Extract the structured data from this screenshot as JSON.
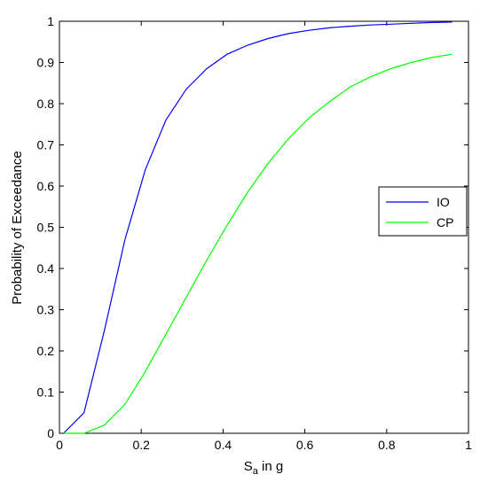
{
  "chart_data": {
    "type": "line",
    "title": "",
    "xlabel": {
      "main": "S",
      "subscript": "a",
      "suffix": " in g"
    },
    "ylabel": "Probability of Exceedance",
    "xlim": [
      0,
      1
    ],
    "ylim": [
      0,
      1
    ],
    "x_ticks": [
      "0",
      "0.2",
      "0.4",
      "0.6",
      "0.8",
      "1"
    ],
    "y_ticks": [
      "0",
      "0.1",
      "0.2",
      "0.3",
      "0.4",
      "0.5",
      "0.6",
      "0.7",
      "0.8",
      "0.9",
      "1"
    ],
    "grid": false,
    "legend_position": "right",
    "series": [
      {
        "name": "IO",
        "color": "#0000ff",
        "x": [
          0.01,
          0.06,
          0.11,
          0.16,
          0.21,
          0.26,
          0.31,
          0.36,
          0.41,
          0.46,
          0.51,
          0.56,
          0.61,
          0.66,
          0.71,
          0.76,
          0.81,
          0.86,
          0.91,
          0.96
        ],
        "y": [
          0.0,
          0.05,
          0.25,
          0.47,
          0.64,
          0.76,
          0.835,
          0.885,
          0.92,
          0.942,
          0.958,
          0.97,
          0.978,
          0.984,
          0.988,
          0.991,
          0.993,
          0.995,
          0.997,
          0.998
        ]
      },
      {
        "name": "CP",
        "color": "#00ff00",
        "x": [
          0.01,
          0.06,
          0.11,
          0.16,
          0.21,
          0.26,
          0.31,
          0.36,
          0.41,
          0.46,
          0.51,
          0.56,
          0.61,
          0.66,
          0.71,
          0.76,
          0.81,
          0.86,
          0.91,
          0.96
        ],
        "y": [
          0.0,
          0.0,
          0.02,
          0.07,
          0.15,
          0.24,
          0.33,
          0.42,
          0.505,
          0.585,
          0.655,
          0.715,
          0.765,
          0.805,
          0.84,
          0.865,
          0.885,
          0.9,
          0.912,
          0.92
        ]
      }
    ]
  }
}
